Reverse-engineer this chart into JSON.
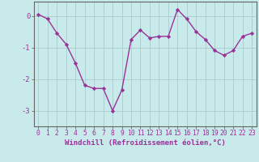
{
  "x": [
    0,
    1,
    2,
    3,
    4,
    5,
    6,
    7,
    8,
    9,
    10,
    11,
    12,
    13,
    14,
    15,
    16,
    17,
    18,
    19,
    20,
    21,
    22,
    23
  ],
  "y": [
    0.05,
    -0.1,
    -0.55,
    -0.9,
    -1.5,
    -2.2,
    -2.3,
    -2.3,
    -3.0,
    -2.35,
    -0.75,
    -0.45,
    -0.7,
    -0.65,
    -0.65,
    0.2,
    -0.1,
    -0.5,
    -0.75,
    -1.1,
    -1.25,
    -1.1,
    -0.65,
    -0.55
  ],
  "line_color": "#993399",
  "marker": "D",
  "marker_size": 2.2,
  "bg_color": "#c8eaea",
  "grid_color": "#aacccc",
  "xlabel": "Windchill (Refroidissement éolien,°C)",
  "xlabel_fontsize": 6.5,
  "tick_fontsize": 5.8,
  "ylabel_ticks": [
    0,
    -1,
    -2,
    -3
  ],
  "xlim": [
    -0.5,
    23.5
  ],
  "ylim": [
    -3.5,
    0.45
  ],
  "line_width": 1.0,
  "axis_color": "#666666"
}
